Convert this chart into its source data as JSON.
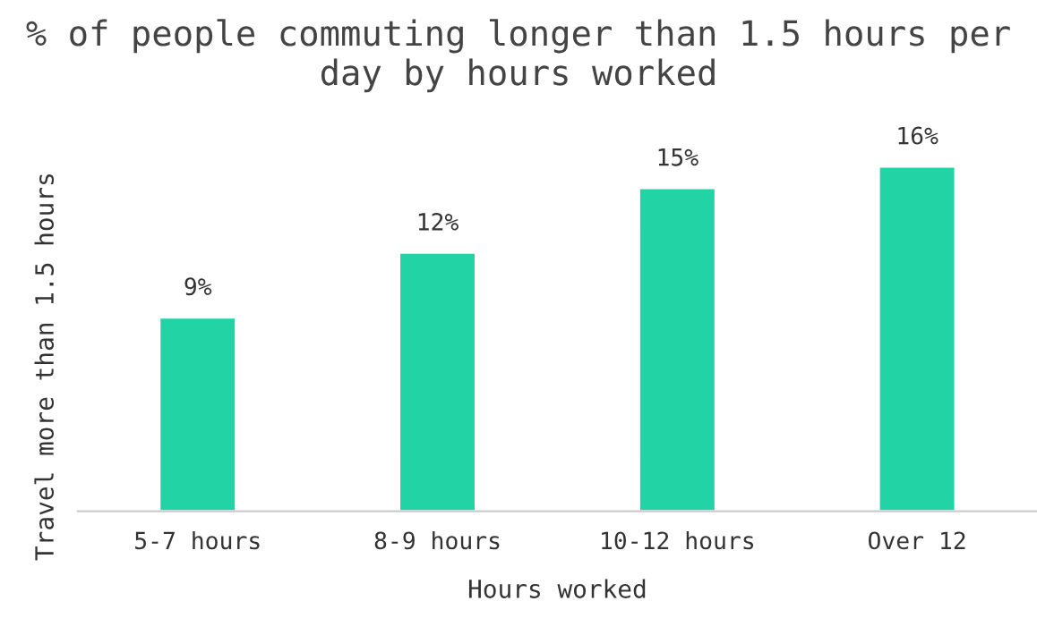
{
  "chart_data": {
    "type": "bar",
    "title": "% of people commuting longer than 1.5 hours per day by hours worked",
    "xlabel": "Hours worked",
    "ylabel": "Travel more than 1.5 hours",
    "categories": [
      "5-7 hours",
      "8-9 hours",
      "10-12 hours",
      "Over 12"
    ],
    "values": [
      9,
      12,
      15,
      16
    ],
    "value_labels": [
      "9%",
      "12%",
      "15%",
      "16%"
    ],
    "color": "#22d3a6",
    "tick_labels": "x",
    "grid": false,
    "legend": false
  }
}
